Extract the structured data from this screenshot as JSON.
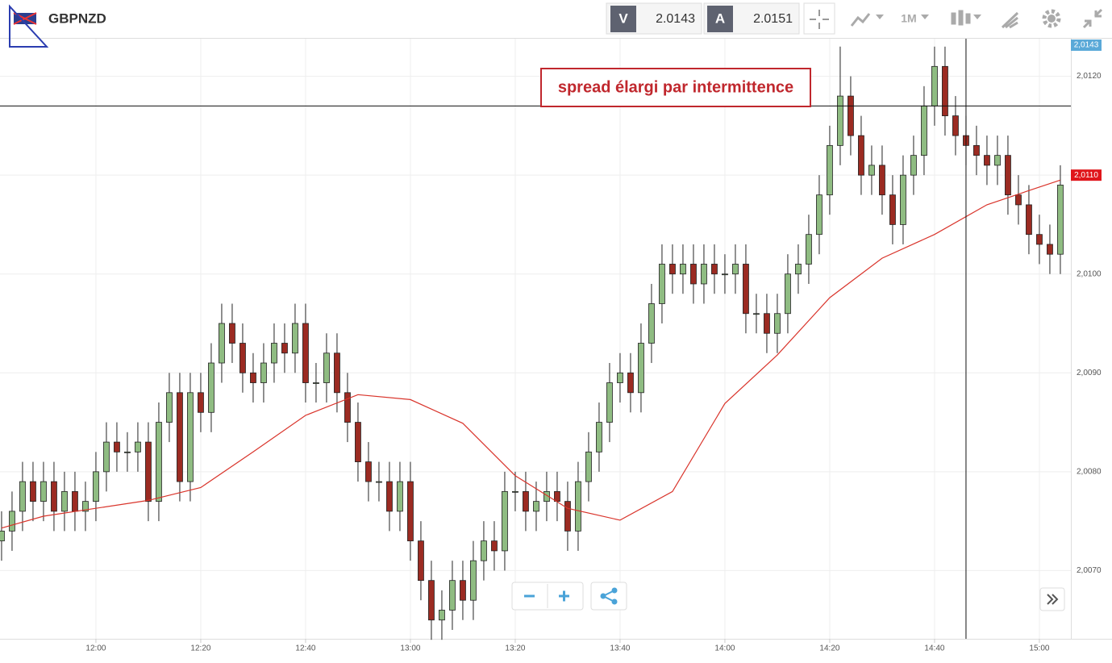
{
  "header": {
    "symbol": "GBPNZD",
    "bid_label": "V",
    "bid": "2.0143",
    "ask_label": "A",
    "ask": "2.0151",
    "timeframe": "1M"
  },
  "chart_data": {
    "type": "candlestick",
    "annotation": "spread élargi par intermittence",
    "bid_tag": "2,0143",
    "price_tag": {
      "value": 2.011,
      "label": "2,0110"
    },
    "reference_line": 2.0117,
    "crosshair": "14:46",
    "up_color": "#8fbc82",
    "down_color": "#9b2b22",
    "x": [
      "11:42",
      "11:44",
      "11:46",
      "11:48",
      "11:50",
      "11:52",
      "11:54",
      "11:56",
      "11:58",
      "12:00",
      "12:02",
      "12:04",
      "12:06",
      "12:08",
      "12:10",
      "12:12",
      "12:14",
      "12:16",
      "12:18",
      "12:20",
      "12:22",
      "12:24",
      "12:26",
      "12:28",
      "12:30",
      "12:32",
      "12:34",
      "12:36",
      "12:38",
      "12:40",
      "12:42",
      "12:44",
      "12:46",
      "12:48",
      "12:50",
      "12:52",
      "12:54",
      "12:56",
      "12:58",
      "13:00",
      "13:02",
      "13:04",
      "13:06",
      "13:08",
      "13:10",
      "13:12",
      "13:14",
      "13:16",
      "13:18",
      "13:20",
      "13:22",
      "13:24",
      "13:26",
      "13:28",
      "13:30",
      "13:32",
      "13:34",
      "13:36",
      "13:38",
      "13:40",
      "13:42",
      "13:44",
      "13:46",
      "13:48",
      "13:50",
      "13:52",
      "13:54",
      "13:56",
      "13:58",
      "14:00",
      "14:02",
      "14:04",
      "14:06",
      "14:08",
      "14:10",
      "14:12",
      "14:14",
      "14:16",
      "14:18",
      "14:20",
      "14:22",
      "14:24",
      "14:26",
      "14:28",
      "14:30",
      "14:32",
      "14:34",
      "14:36",
      "14:38",
      "14:40",
      "14:42",
      "14:44",
      "14:46",
      "14:48",
      "14:50",
      "14:52",
      "14:54",
      "14:56",
      "14:58",
      "15:00",
      "15:02",
      "15:04"
    ],
    "open": [
      2.0073,
      2.0074,
      2.0076,
      2.0079,
      2.0077,
      2.0079,
      2.0076,
      2.0078,
      2.0076,
      2.0077,
      2.008,
      2.0083,
      2.0082,
      2.0082,
      2.0083,
      2.0077,
      2.0085,
      2.0088,
      2.0079,
      2.0088,
      2.0086,
      2.0091,
      2.0095,
      2.0093,
      2.009,
      2.0089,
      2.0091,
      2.0093,
      2.0092,
      2.0095,
      2.0089,
      2.0089,
      2.0092,
      2.0088,
      2.0085,
      2.0081,
      2.0079,
      2.0079,
      2.0076,
      2.0079,
      2.0073,
      2.0069,
      2.0065,
      2.0066,
      2.0069,
      2.0067,
      2.0071,
      2.0073,
      2.0072,
      2.0078,
      2.0078,
      2.0076,
      2.0077,
      2.0078,
      2.0077,
      2.0074,
      2.0079,
      2.0082,
      2.0085,
      2.0089,
      2.009,
      2.0088,
      2.0093,
      2.0097,
      2.0101,
      2.01,
      2.0101,
      2.0099,
      2.0101,
      2.01,
      2.01,
      2.0101,
      2.0096,
      2.0096,
      2.0094,
      2.0096,
      2.01,
      2.0101,
      2.0104,
      2.0108,
      2.0113,
      2.0118,
      2.0114,
      2.011,
      2.0111,
      2.0108,
      2.0105,
      2.011,
      2.0112,
      2.0117,
      2.0121,
      2.0116,
      2.0114,
      2.0113,
      2.0112,
      2.0111,
      2.0112,
      2.0108,
      2.0107,
      2.0104,
      2.0103,
      2.0102
    ],
    "high": [
      2.0076,
      2.0078,
      2.0081,
      2.0081,
      2.0081,
      2.0081,
      2.008,
      2.008,
      2.0079,
      2.0082,
      2.0085,
      2.0085,
      2.0084,
      2.0085,
      2.0085,
      2.0087,
      2.009,
      2.009,
      2.009,
      2.009,
      2.0093,
      2.0097,
      2.0097,
      2.0095,
      2.0092,
      2.0093,
      2.0095,
      2.0095,
      2.0097,
      2.0097,
      2.0091,
      2.0094,
      2.0094,
      2.009,
      2.0087,
      2.0083,
      2.0081,
      2.0081,
      2.0081,
      2.0081,
      2.0075,
      2.0071,
      2.0068,
      2.0071,
      2.0071,
      2.0073,
      2.0075,
      2.0075,
      2.008,
      2.008,
      2.008,
      2.0079,
      2.008,
      2.008,
      2.0079,
      2.0081,
      2.0084,
      2.0087,
      2.0091,
      2.0092,
      2.0092,
      2.0095,
      2.0099,
      2.0103,
      2.0103,
      2.0103,
      2.0103,
      2.0103,
      2.0103,
      2.0102,
      2.0103,
      2.0103,
      2.0098,
      2.0098,
      2.0098,
      2.0102,
      2.0103,
      2.0106,
      2.011,
      2.0115,
      2.0123,
      2.012,
      2.0116,
      2.0113,
      2.0113,
      2.011,
      2.0112,
      2.0114,
      2.0119,
      2.0123,
      2.0123,
      2.0118,
      2.0116,
      2.0115,
      2.0114,
      2.0114,
      2.0114,
      2.011,
      2.0109,
      2.0106,
      2.0105,
      2.0111
    ],
    "low": [
      2.0071,
      2.0072,
      2.0074,
      2.0075,
      2.0075,
      2.0074,
      2.0074,
      2.0074,
      2.0074,
      2.0075,
      2.0078,
      2.008,
      2.008,
      2.008,
      2.0075,
      2.0075,
      2.0083,
      2.0077,
      2.0077,
      2.0084,
      2.0084,
      2.0089,
      2.0091,
      2.0088,
      2.0087,
      2.0087,
      2.0089,
      2.009,
      2.009,
      2.0087,
      2.0087,
      2.0087,
      2.0086,
      2.0083,
      2.0079,
      2.0077,
      2.0077,
      2.0074,
      2.0074,
      2.0071,
      2.0067,
      2.0063,
      2.0063,
      2.0064,
      2.0065,
      2.0065,
      2.0069,
      2.007,
      2.007,
      2.0076,
      2.0074,
      2.0074,
      2.0075,
      2.0075,
      2.0072,
      2.0072,
      2.0077,
      2.008,
      2.0083,
      2.0087,
      2.0086,
      2.0086,
      2.0091,
      2.0095,
      2.0098,
      2.0098,
      2.0097,
      2.0097,
      2.0098,
      2.0098,
      2.0098,
      2.0094,
      2.0094,
      2.0092,
      2.0092,
      2.0094,
      2.0098,
      2.0099,
      2.0102,
      2.0106,
      2.0111,
      2.0112,
      2.0108,
      2.0108,
      2.0106,
      2.0103,
      2.0103,
      2.0108,
      2.011,
      2.0115,
      2.0114,
      2.0112,
      2.0111,
      2.011,
      2.0109,
      2.0109,
      2.0106,
      2.0105,
      2.0102,
      2.0101,
      2.01,
      2.01
    ],
    "close": [
      2.0074,
      2.0076,
      2.0079,
      2.0077,
      2.0079,
      2.0076,
      2.0078,
      2.0076,
      2.0077,
      2.008,
      2.0083,
      2.0082,
      2.0082,
      2.0083,
      2.0077,
      2.0085,
      2.0088,
      2.0079,
      2.0088,
      2.0086,
      2.0091,
      2.0095,
      2.0093,
      2.009,
      2.0089,
      2.0091,
      2.0093,
      2.0092,
      2.0095,
      2.0089,
      2.0089,
      2.0092,
      2.0088,
      2.0085,
      2.0081,
      2.0079,
      2.0079,
      2.0076,
      2.0079,
      2.0073,
      2.0069,
      2.0065,
      2.0066,
      2.0069,
      2.0067,
      2.0071,
      2.0073,
      2.0072,
      2.0078,
      2.0078,
      2.0076,
      2.0077,
      2.0078,
      2.0077,
      2.0074,
      2.0079,
      2.0082,
      2.0085,
      2.0089,
      2.009,
      2.0088,
      2.0093,
      2.0097,
      2.0101,
      2.01,
      2.0101,
      2.0099,
      2.0101,
      2.01,
      2.01,
      2.0101,
      2.0096,
      2.0096,
      2.0094,
      2.0096,
      2.01,
      2.0101,
      2.0104,
      2.0108,
      2.0113,
      2.0118,
      2.0114,
      2.011,
      2.0111,
      2.0108,
      2.0105,
      2.011,
      2.0112,
      2.0117,
      2.0121,
      2.0116,
      2.0114,
      2.0113,
      2.0112,
      2.0111,
      2.0112,
      2.0108,
      2.0107,
      2.0104,
      2.0103,
      2.0102,
      2.0109
    ],
    "moving_average": {
      "color": "#d9342b",
      "x": [
        "11:42",
        "11:50",
        "12:00",
        "12:10",
        "12:20",
        "12:30",
        "12:40",
        "12:50",
        "13:00",
        "13:10",
        "13:20",
        "13:30",
        "13:40",
        "13:50",
        "14:00",
        "14:10",
        "14:20",
        "14:30",
        "14:40",
        "14:50",
        "15:00",
        "15:04"
      ],
      "values": [
        2.00743,
        2.00755,
        2.00763,
        2.00771,
        2.00784,
        2.0082,
        2.00857,
        2.00878,
        2.00873,
        2.00849,
        2.00796,
        2.00763,
        2.00751,
        2.0078,
        2.00869,
        2.00918,
        2.00976,
        2.01016,
        2.0104,
        2.0107,
        2.01088,
        2.01095
      ]
    },
    "ylim": [
      2.00631,
      2.01238
    ],
    "yticks": [
      {
        "value": 2.007,
        "label": "2,0070"
      },
      {
        "value": 2.008,
        "label": "2,0080"
      },
      {
        "value": 2.009,
        "label": "2,0090"
      },
      {
        "value": 2.01,
        "label": "2,0100"
      },
      {
        "value": 2.011,
        "label": "2,0110"
      },
      {
        "value": 2.012,
        "label": "2,0120"
      }
    ],
    "xticks": [
      "12:00",
      "12:20",
      "12:40",
      "13:00",
      "13:20",
      "13:40",
      "14:00",
      "14:20",
      "14:40",
      "15:00"
    ],
    "grid": true
  }
}
